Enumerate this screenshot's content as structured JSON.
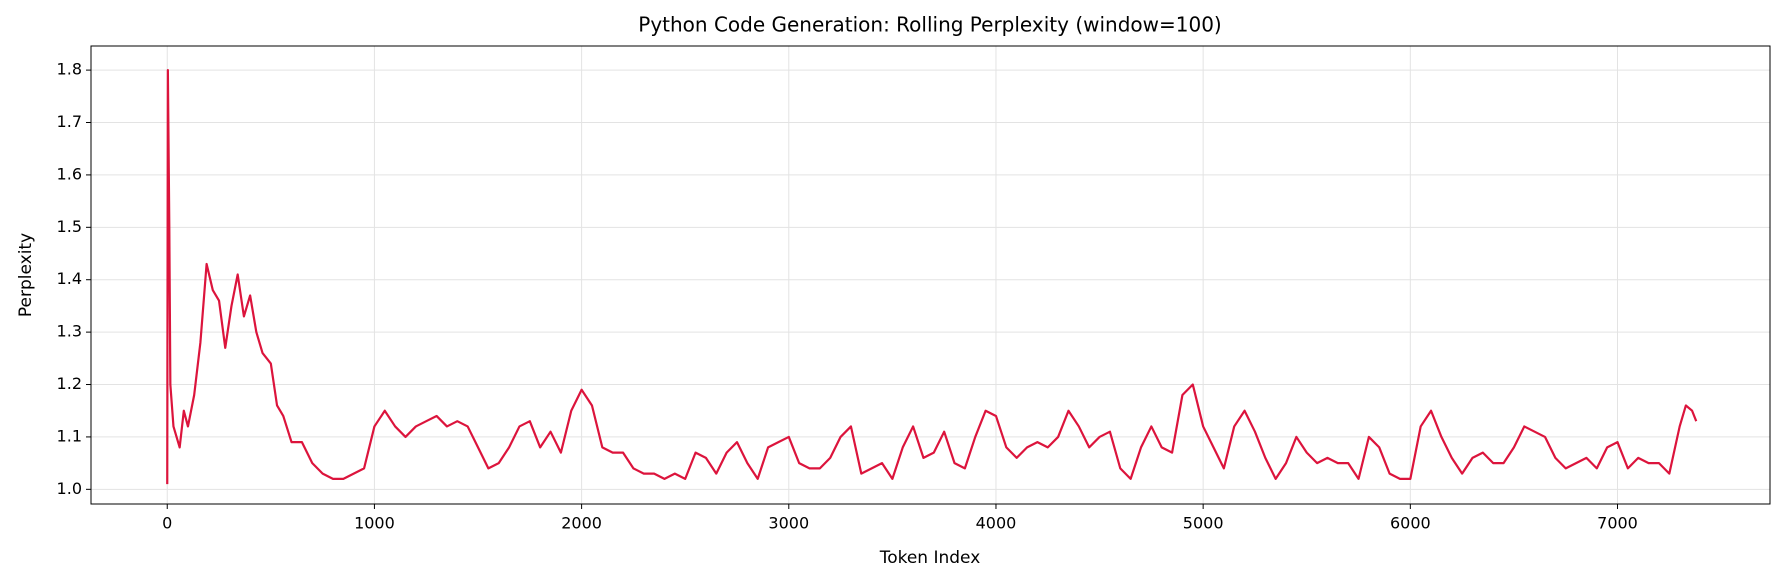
{
  "chart_data": {
    "type": "line",
    "title": "Python Code Generation: Rolling Perplexity (window=100)",
    "xlabel": "Token Index",
    "ylabel": "Perplexity",
    "x": [
      0,
      3,
      10,
      15,
      30,
      60,
      80,
      100,
      130,
      160,
      190,
      220,
      250,
      280,
      310,
      340,
      370,
      400,
      430,
      460,
      500,
      530,
      560,
      600,
      650,
      700,
      750,
      800,
      850,
      900,
      950,
      1000,
      1050,
      1100,
      1150,
      1200,
      1250,
      1300,
      1350,
      1400,
      1450,
      1500,
      1550,
      1600,
      1650,
      1700,
      1750,
      1800,
      1850,
      1900,
      1950,
      2000,
      2050,
      2100,
      2150,
      2200,
      2250,
      2300,
      2350,
      2400,
      2450,
      2500,
      2550,
      2600,
      2650,
      2700,
      2750,
      2800,
      2850,
      2900,
      2950,
      3000,
      3050,
      3100,
      3150,
      3200,
      3250,
      3300,
      3350,
      3400,
      3450,
      3500,
      3550,
      3600,
      3650,
      3700,
      3750,
      3800,
      3850,
      3900,
      3950,
      4000,
      4050,
      4100,
      4150,
      4200,
      4250,
      4300,
      4350,
      4400,
      4450,
      4500,
      4550,
      4600,
      4650,
      4700,
      4750,
      4800,
      4850,
      4900,
      4950,
      5000,
      5050,
      5100,
      5150,
      5200,
      5250,
      5300,
      5350,
      5400,
      5450,
      5500,
      5550,
      5600,
      5650,
      5700,
      5750,
      5800,
      5850,
      5900,
      5950,
      6000,
      6050,
      6100,
      6150,
      6200,
      6250,
      6300,
      6350,
      6400,
      6450,
      6500,
      6550,
      6600,
      6650,
      6700,
      6750,
      6800,
      6850,
      6900,
      6950,
      7000,
      7050,
      7100,
      7150,
      7200,
      7250,
      7300,
      7330,
      7360,
      7380
    ],
    "series": [
      {
        "name": "Perplexity",
        "color": "#dc143c",
        "values": [
          1.01,
          1.8,
          1.5,
          1.2,
          1.12,
          1.08,
          1.15,
          1.12,
          1.18,
          1.28,
          1.43,
          1.38,
          1.36,
          1.27,
          1.35,
          1.41,
          1.33,
          1.37,
          1.3,
          1.26,
          1.24,
          1.16,
          1.14,
          1.09,
          1.09,
          1.05,
          1.03,
          1.02,
          1.02,
          1.03,
          1.04,
          1.12,
          1.15,
          1.12,
          1.1,
          1.12,
          1.13,
          1.14,
          1.12,
          1.13,
          1.12,
          1.08,
          1.04,
          1.05,
          1.08,
          1.12,
          1.13,
          1.08,
          1.11,
          1.07,
          1.15,
          1.19,
          1.16,
          1.08,
          1.07,
          1.07,
          1.04,
          1.03,
          1.03,
          1.02,
          1.03,
          1.02,
          1.07,
          1.06,
          1.03,
          1.07,
          1.09,
          1.05,
          1.02,
          1.08,
          1.09,
          1.1,
          1.05,
          1.04,
          1.04,
          1.06,
          1.1,
          1.12,
          1.03,
          1.04,
          1.05,
          1.02,
          1.08,
          1.12,
          1.06,
          1.07,
          1.11,
          1.05,
          1.04,
          1.1,
          1.15,
          1.14,
          1.08,
          1.06,
          1.08,
          1.09,
          1.08,
          1.1,
          1.15,
          1.12,
          1.08,
          1.1,
          1.11,
          1.04,
          1.02,
          1.08,
          1.12,
          1.08,
          1.07,
          1.18,
          1.2,
          1.12,
          1.08,
          1.04,
          1.12,
          1.15,
          1.11,
          1.06,
          1.02,
          1.05,
          1.1,
          1.07,
          1.05,
          1.06,
          1.05,
          1.05,
          1.02,
          1.1,
          1.08,
          1.03,
          1.02,
          1.02,
          1.12,
          1.15,
          1.1,
          1.06,
          1.03,
          1.06,
          1.07,
          1.05,
          1.05,
          1.08,
          1.12,
          1.11,
          1.1,
          1.06,
          1.04,
          1.05,
          1.06,
          1.04,
          1.08,
          1.09,
          1.04,
          1.06,
          1.05,
          1.05,
          1.03,
          1.12,
          1.16,
          1.15,
          1.13
        ]
      }
    ],
    "xlim": [
      -368,
      7736
    ],
    "ylim": [
      0.972,
      1.846
    ],
    "xticks": [
      0,
      1000,
      2000,
      3000,
      4000,
      5000,
      6000,
      7000
    ],
    "yticks": [
      {
        "value": 1,
        "label": "1.0"
      },
      1.1,
      1.2,
      1.3,
      1.4,
      1.5,
      1.6,
      1.7,
      1.8
    ],
    "grid": true
  }
}
